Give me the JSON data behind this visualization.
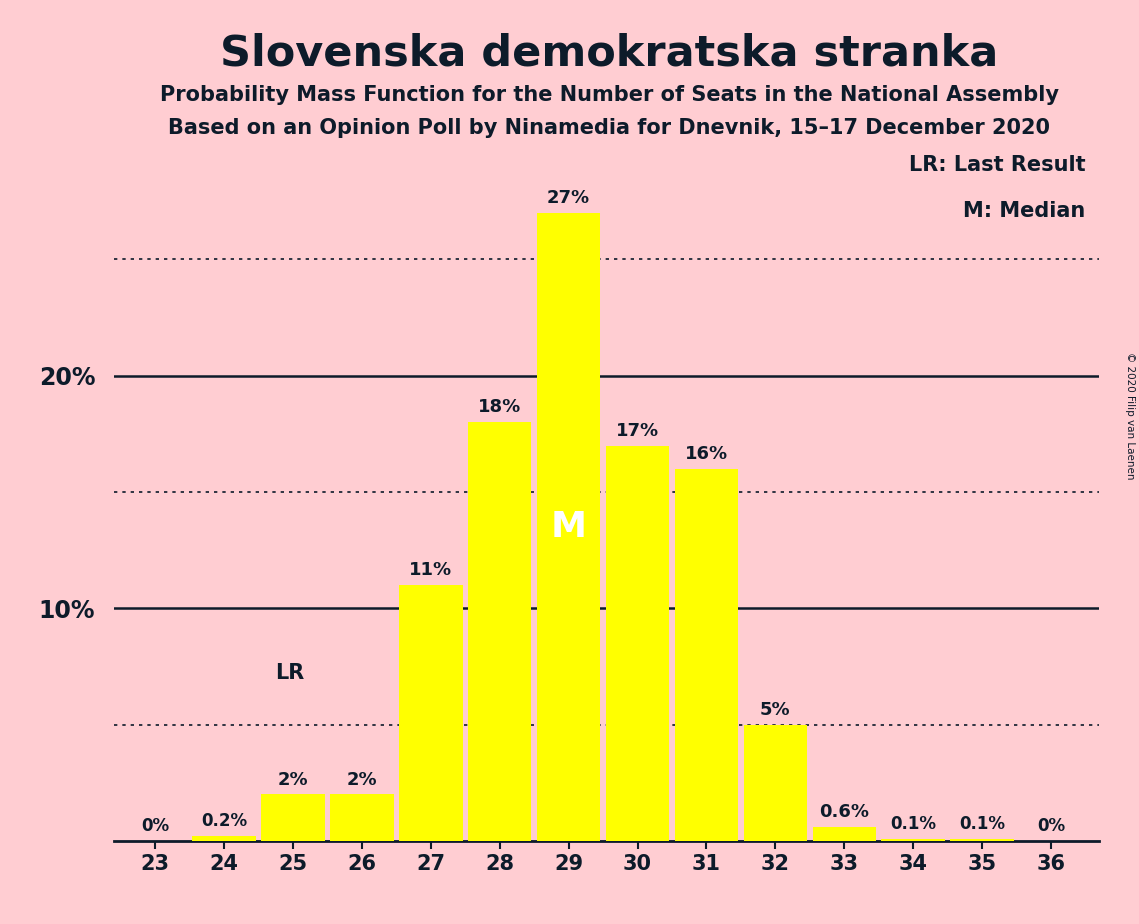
{
  "title": "Slovenska demokratska stranka",
  "subtitle1": "Probability Mass Function for the Number of Seats in the National Assembly",
  "subtitle2": "Based on an Opinion Poll by Ninamedia for Dnevnik, 15–17 December 2020",
  "copyright": "© 2020 Filip van Laenen",
  "seats": [
    23,
    24,
    25,
    26,
    27,
    28,
    29,
    30,
    31,
    32,
    33,
    34,
    35,
    36
  ],
  "probabilities": [
    0.0,
    0.2,
    2.0,
    2.0,
    11.0,
    18.0,
    27.0,
    17.0,
    16.0,
    5.0,
    0.6,
    0.1,
    0.1,
    0.0
  ],
  "bar_color": "#FFFF00",
  "background_color": "#FFCDD2",
  "text_color": "#0D1B2A",
  "median_seat": 29,
  "last_result_seat": 25,
  "labels": [
    "0%",
    "0.2%",
    "2%",
    "2%",
    "11%",
    "18%",
    "27%",
    "17%",
    "16%",
    "5%",
    "0.6%",
    "0.1%",
    "0.1%",
    "0%"
  ],
  "solid_yticks": [
    10,
    20
  ],
  "dotted_yticks": [
    5,
    15,
    25
  ],
  "legend_LR": "LR: Last Result",
  "legend_M": "M: Median",
  "xlim": [
    22.4,
    36.7
  ],
  "ylim": [
    0,
    30
  ],
  "ylabel_10": "10%",
  "ylabel_20": "20%"
}
